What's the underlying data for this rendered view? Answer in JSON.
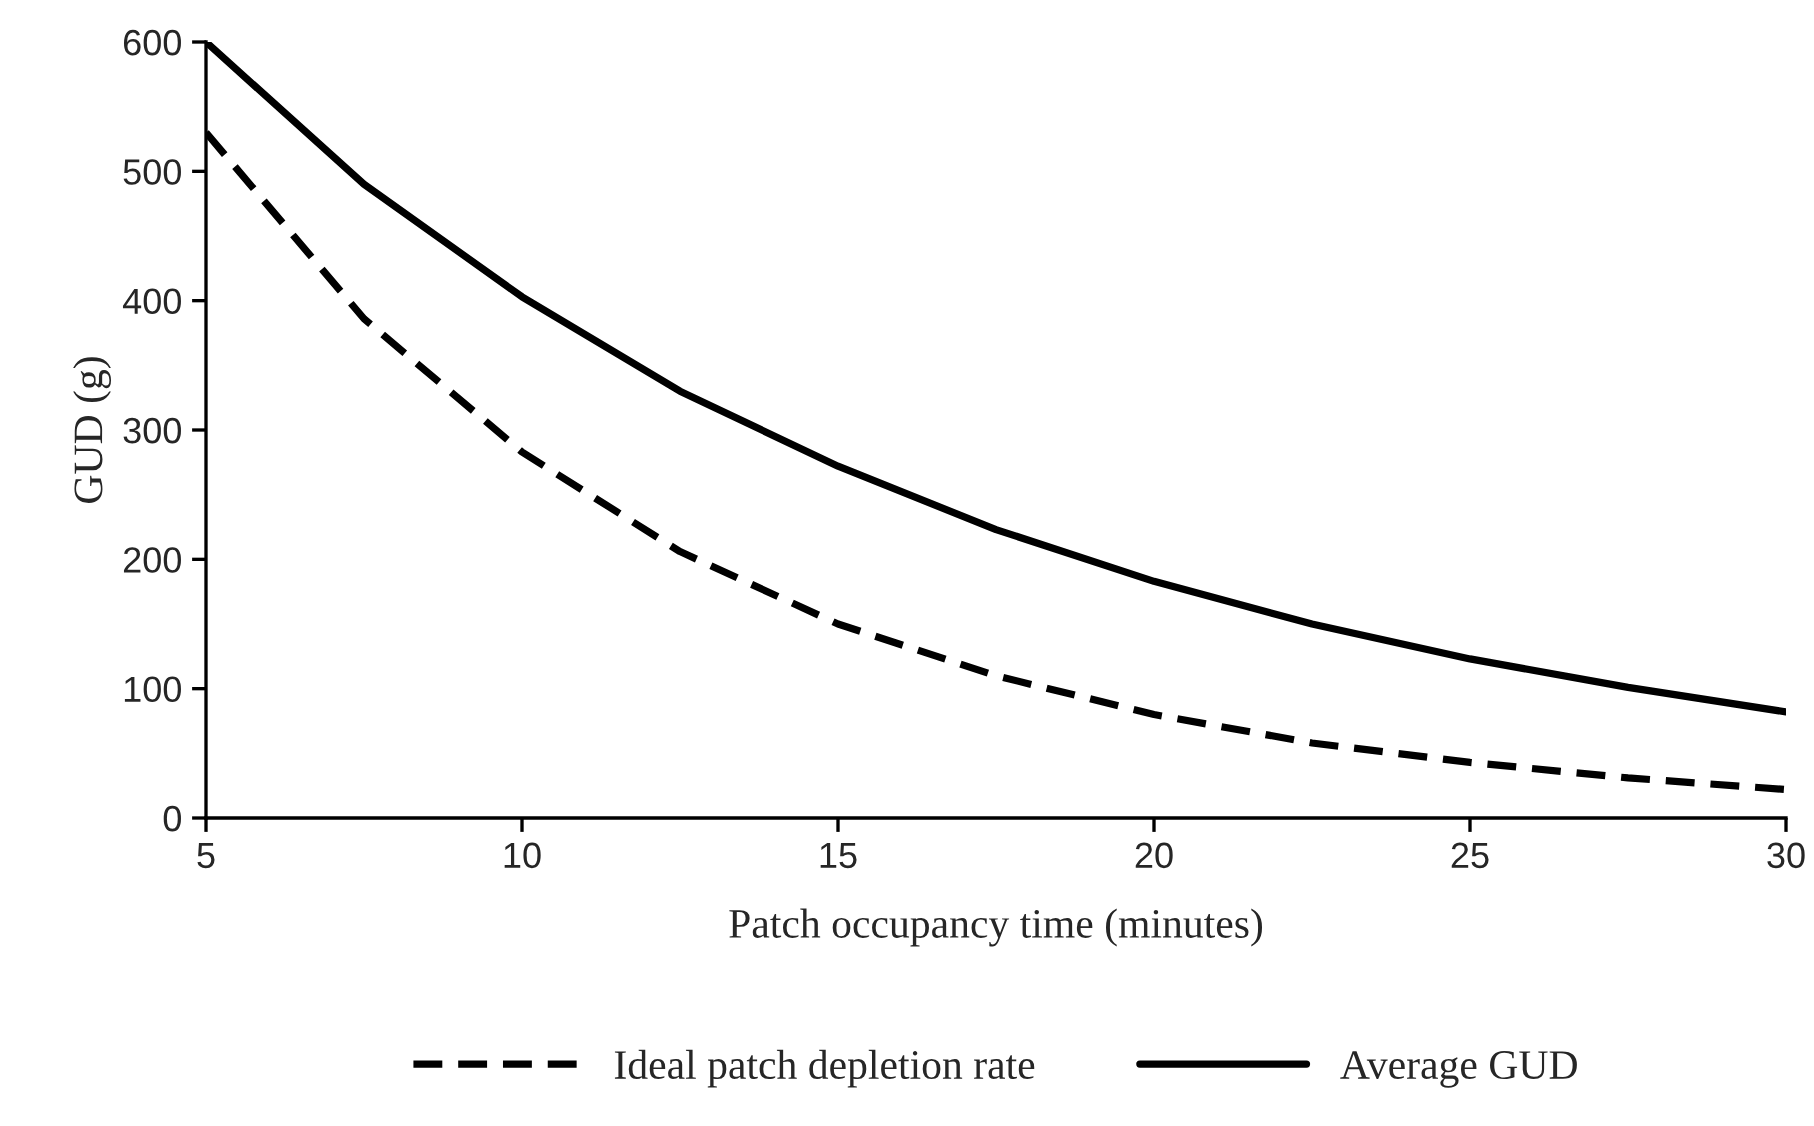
{
  "chart_data": {
    "type": "line",
    "xlabel": "Patch occupancy time (minutes)",
    "ylabel": "GUD (g)",
    "series": [
      {
        "name": "Ideal patch depletion rate",
        "color": "#000000",
        "line_style": "dashed",
        "x": [
          5,
          7.5,
          10,
          12.5,
          15,
          17.5,
          20,
          22.5,
          25,
          27.5,
          30
        ],
        "values": [
          530,
          386,
          283,
          206,
          150,
          110,
          80,
          58,
          43,
          31,
          22
        ]
      },
      {
        "name": "Average GUD",
        "color": "#000000",
        "line_style": "solid",
        "x": [
          5,
          7.5,
          10,
          12.5,
          15,
          17.5,
          20,
          22.5,
          25,
          27.5,
          30
        ],
        "values": [
          600,
          490,
          403,
          330,
          272,
          223,
          183,
          150,
          123,
          101,
          82
        ]
      }
    ],
    "xlim": [
      5,
      30
    ],
    "xticks": [
      5,
      10,
      15,
      20,
      25,
      30
    ],
    "ylim": [
      0,
      600
    ],
    "yticks": [
      0,
      100,
      200,
      300,
      400,
      500,
      600
    ],
    "grid": false,
    "legend": "bottom",
    "marker": "none"
  }
}
